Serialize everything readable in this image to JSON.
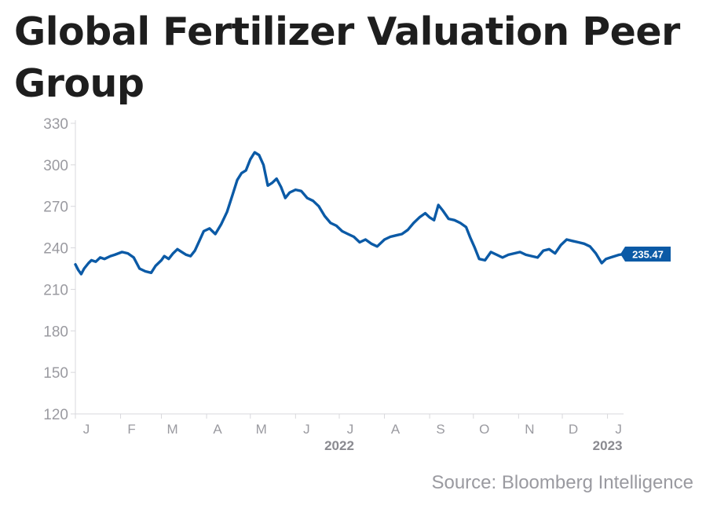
{
  "chart_data": {
    "type": "line",
    "title": "Global Fertilizer Valuation Peer Group",
    "source": "Source: Bloomberg Intelligence",
    "xlabel": "",
    "ylabel": "",
    "ylim": [
      120,
      330
    ],
    "yticks": [
      120,
      150,
      180,
      210,
      240,
      270,
      300,
      330
    ],
    "xlim": [
      "2022-01-01",
      "2023-01-12"
    ],
    "x_ticks": [
      {
        "label": "J",
        "date": "2022-01-01"
      },
      {
        "label": "F",
        "date": "2022-02-01"
      },
      {
        "label": "M",
        "date": "2022-03-01"
      },
      {
        "label": "A",
        "date": "2022-04-01"
      },
      {
        "label": "M",
        "date": "2022-05-01"
      },
      {
        "label": "J",
        "date": "2022-06-01"
      },
      {
        "label": "J",
        "date": "2022-07-01"
      },
      {
        "label": "A",
        "date": "2022-08-01"
      },
      {
        "label": "S",
        "date": "2022-09-01"
      },
      {
        "label": "O",
        "date": "2022-10-01"
      },
      {
        "label": "N",
        "date": "2022-11-01"
      },
      {
        "label": "D",
        "date": "2022-12-01"
      },
      {
        "label": "J",
        "date": "2023-01-01"
      }
    ],
    "year_labels": [
      {
        "label": "2022",
        "date": "2022-07-01"
      },
      {
        "label": "2023",
        "date": "2023-01-01"
      }
    ],
    "grid": false,
    "line_color": "#0b5aa6",
    "last_value_label": "235.47",
    "series": [
      {
        "x": [
          "2022-01-01",
          "2022-01-03",
          "2022-01-05",
          "2022-01-07",
          "2022-01-10",
          "2022-01-12",
          "2022-01-15",
          "2022-01-18",
          "2022-01-21",
          "2022-01-25",
          "2022-01-28",
          "2022-02-02",
          "2022-02-06",
          "2022-02-10",
          "2022-02-14",
          "2022-02-18",
          "2022-02-22",
          "2022-02-25",
          "2022-03-01",
          "2022-03-03",
          "2022-03-06",
          "2022-03-09",
          "2022-03-12",
          "2022-03-15",
          "2022-03-18",
          "2022-03-21",
          "2022-03-24",
          "2022-03-27",
          "2022-03-30",
          "2022-04-03",
          "2022-04-07",
          "2022-04-11",
          "2022-04-15",
          "2022-04-19",
          "2022-04-22",
          "2022-04-25",
          "2022-04-28",
          "2022-05-01",
          "2022-05-04",
          "2022-05-07",
          "2022-05-10",
          "2022-05-13",
          "2022-05-16",
          "2022-05-19",
          "2022-05-22",
          "2022-05-25",
          "2022-05-28",
          "2022-06-01",
          "2022-06-05",
          "2022-06-09",
          "2022-06-13",
          "2022-06-17",
          "2022-06-21",
          "2022-06-25",
          "2022-06-29",
          "2022-07-03",
          "2022-07-07",
          "2022-07-11",
          "2022-07-15",
          "2022-07-19",
          "2022-07-23",
          "2022-07-27",
          "2022-08-01",
          "2022-08-05",
          "2022-08-09",
          "2022-08-13",
          "2022-08-17",
          "2022-08-21",
          "2022-08-25",
          "2022-08-29",
          "2022-09-01",
          "2022-09-04",
          "2022-09-07",
          "2022-09-10",
          "2022-09-14",
          "2022-09-18",
          "2022-09-22",
          "2022-09-26",
          "2022-09-29",
          "2022-10-02",
          "2022-10-05",
          "2022-10-09",
          "2022-10-13",
          "2022-10-17",
          "2022-10-21",
          "2022-10-25",
          "2022-10-29",
          "2022-11-02",
          "2022-11-06",
          "2022-11-10",
          "2022-11-14",
          "2022-11-18",
          "2022-11-22",
          "2022-11-26",
          "2022-11-30",
          "2022-12-04",
          "2022-12-08",
          "2022-12-12",
          "2022-12-16",
          "2022-12-20",
          "2022-12-24",
          "2022-12-28",
          "2022-12-31",
          "2023-01-03",
          "2023-01-06",
          "2023-01-09",
          "2023-01-12"
        ],
        "y": [
          228,
          224,
          221,
          225,
          229,
          231,
          230,
          233,
          232,
          234,
          235,
          237,
          236,
          233,
          225,
          223,
          222,
          227,
          231,
          234,
          232,
          236,
          239,
          237,
          235,
          234,
          238,
          245,
          252,
          254,
          250,
          257,
          266,
          279,
          289,
          294,
          296,
          304,
          309,
          307,
          300,
          285,
          287,
          290,
          284,
          276,
          280,
          282,
          281,
          276,
          274,
          270,
          263,
          258,
          256,
          252,
          250,
          248,
          244,
          246,
          243,
          241,
          246,
          248,
          249,
          250,
          253,
          258,
          262,
          265,
          262,
          260,
          271,
          267,
          261,
          260,
          258,
          255,
          247,
          240,
          232,
          231,
          237,
          235,
          233,
          235,
          236,
          237,
          235,
          234,
          233,
          238,
          239,
          236,
          242,
          246,
          245,
          244,
          243,
          241,
          236,
          229,
          232,
          233,
          234,
          235,
          235.47
        ]
      }
    ]
  }
}
